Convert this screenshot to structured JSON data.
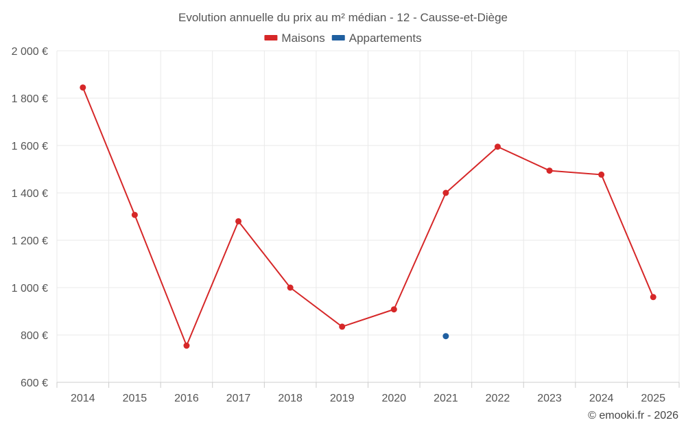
{
  "chart_data": {
    "type": "line",
    "title": "Evolution annuelle du prix au m² médian - 12 - Causse-et-Diège",
    "categories": [
      "2014",
      "2015",
      "2016",
      "2017",
      "2018",
      "2019",
      "2020",
      "2021",
      "2022",
      "2023",
      "2024",
      "2025"
    ],
    "series": [
      {
        "name": "Maisons",
        "color": "#d62728",
        "values": [
          1845,
          1307,
          755,
          1280,
          1000,
          835,
          908,
          1400,
          1595,
          1494,
          1477,
          960
        ]
      },
      {
        "name": "Appartements",
        "color": "#1f5fa0",
        "values": [
          null,
          null,
          null,
          null,
          null,
          null,
          null,
          795,
          null,
          null,
          null,
          null
        ]
      }
    ],
    "ylim": [
      600,
      2000
    ],
    "yticks": [
      600,
      800,
      1000,
      1200,
      1400,
      1600,
      1800,
      2000
    ],
    "ytick_labels": [
      "600 €",
      "800 €",
      "1 000 €",
      "1 200 €",
      "1 400 €",
      "1 600 €",
      "1 800 €",
      "2 000 €"
    ],
    "xlabel": "",
    "ylabel": "",
    "grid": true,
    "legend_position": "top-center"
  },
  "credit": "© emooki.fr - 2026"
}
